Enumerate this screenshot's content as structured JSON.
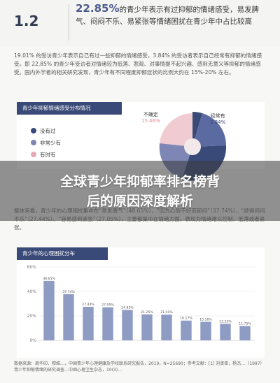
{
  "section_number": "1.2",
  "headline": {
    "percent": "22.85%",
    "text": "的青少年表示有过抑郁的情绪感受，易发脾气、闷闷不乐、易紧张等情绪困扰在青少年中占比较高"
  },
  "body1": "19.01% 的受访青少年表示自己有过一些抑郁的情绪感受，3.84% 的受访者表示自己经常有抑郁的情绪感受。即 22.85% 的青少年受访者对情绪较为低落、悲观、对事情提不起兴趣、感到无意义等抑郁的情绪感受。国内外学者的相关研究发现，青少年有不同程度抑郁症状的比例大约在 15%-20% 左右。",
  "pie_card": {
    "title": "青少年抑郁情绪感受分布情况",
    "legend": [
      {
        "label": "没有过",
        "color": "#3a4a78"
      },
      {
        "label": "非常少有",
        "color": "#7d86b4"
      },
      {
        "label": "有时有",
        "color": "#e6aab4"
      }
    ],
    "not_sure_label": "不确定",
    "not_sure_value": "15.46%",
    "often_label": "经常有",
    "often_value": "3.84%"
  },
  "overlay_title_line1": "全球青少年抑郁率排名榜背",
  "overlay_title_line2": "后的原因深度解析",
  "body2": "整体来看，青少年的心理困扰集中在“易发脾气”（48.65%）、“因为心情不好而郁闷”（37.74%）、“烦得闷闷不乐”（27.44%）、“容易感到紧张”（27.05%），主要都集中在情绪方面，表现为情绪难以控制、低落或者紧张。",
  "bar_card": {
    "title": "青少年的心理困扰分布",
    "y_ticks": [
      "60%",
      "40%",
      "20%",
      "0%"
    ]
  },
  "chart_data": {
    "type": "bar",
    "title": "青少年的心理困扰分布",
    "ylim": [
      0,
      60
    ],
    "y_ticks": [
      0,
      20,
      40,
      60
    ],
    "values": [
      48.65,
      37.74,
      27.44,
      27.05,
      24.85,
      21.25,
      21.01,
      16.17,
      15.16,
      13.55,
      11.75
    ],
    "value_labels": [
      "48.65%",
      "37.74%",
      "27.44%",
      "27.05%",
      "24.85%",
      "21.25%",
      "21.01%",
      "16.17%",
      "15.16%",
      "13.55%",
      "11.75%"
    ]
  },
  "footnote": "数据来源：周华印、穆维…，中国青少年心理健康及学校联系研究报告，2019，N=25690；参考文献：[1] 刘贤臣，杨杰…（1997）青少年抑郁情绪的研究调查…中国心理卫生杂志，10(3)…"
}
